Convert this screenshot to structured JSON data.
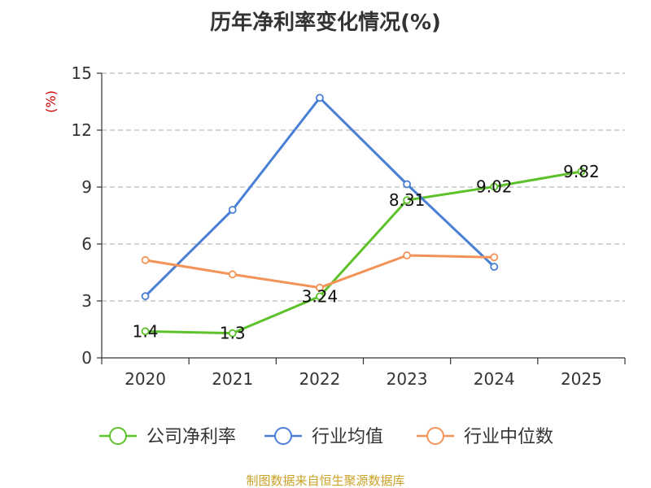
{
  "chart_data": {
    "type": "line",
    "title": "历年净利率变化情况(%)",
    "y_unit_label": "(%)",
    "categories": [
      "2020",
      "2021",
      "2022",
      "2023",
      "2024",
      "2025"
    ],
    "ylim": [
      0,
      15
    ],
    "yticks": [
      0,
      3,
      6,
      9,
      12,
      15
    ],
    "grid": true,
    "legend_position": "bottom",
    "series": [
      {
        "name": "公司净利率",
        "color": "#5dc12a",
        "values": [
          1.4,
          1.3,
          3.24,
          8.31,
          9.02,
          9.82
        ],
        "data_labels": [
          "1.4",
          "1.3",
          "3.24",
          "8.31",
          "9.02",
          "9.82"
        ]
      },
      {
        "name": "行业均值",
        "color": "#4a7fd6",
        "values": [
          3.25,
          7.8,
          13.7,
          9.15,
          4.8,
          null
        ]
      },
      {
        "name": "行业中位数",
        "color": "#f39358",
        "values": [
          5.15,
          4.4,
          3.7,
          5.4,
          5.3,
          null
        ]
      }
    ]
  },
  "source_text": "制图数据来自恒生聚源数据库"
}
